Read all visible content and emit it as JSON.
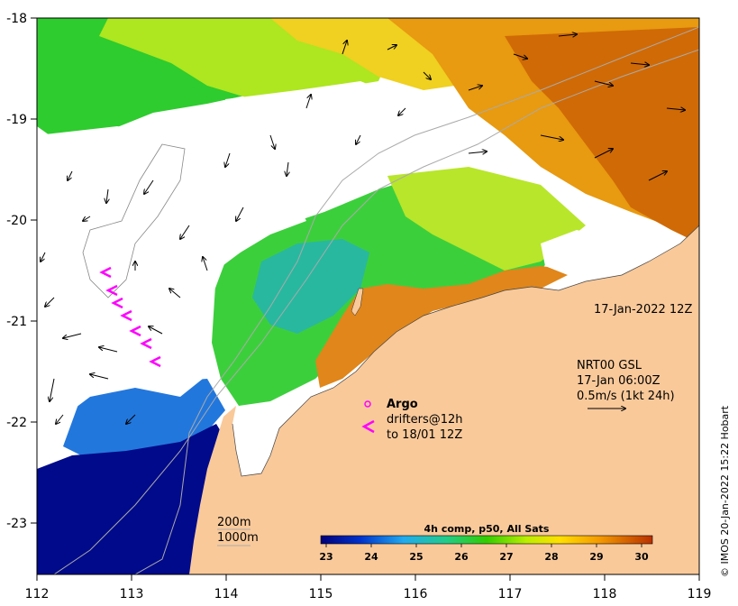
{
  "map": {
    "lon_ticks": [
      "112",
      "113",
      "114",
      "115",
      "116",
      "117",
      "118",
      "119"
    ],
    "lat_ticks": [
      "-18",
      "-19",
      "-20",
      "-21",
      "-22",
      "-23"
    ],
    "timestamp": "17-Jan-2022 12Z",
    "current_product": {
      "line1": "NRT00 GSL",
      "line2": "17-Jan 06:00Z",
      "line3": "0.5m/s (1kt 24h)"
    },
    "legend": {
      "argo_label": "Argo",
      "drifters_line1": "drifters@12h",
      "drifters_line2": "to 18/01 12Z",
      "argo_color": "#ff00ff"
    },
    "isobaths": {
      "shallow": "200m",
      "deep": "1000m"
    },
    "colorbar": {
      "title": "4h comp, p50, All Sats",
      "ticks": [
        "23",
        "24",
        "25",
        "26",
        "27",
        "28",
        "29",
        "30"
      ]
    },
    "credit": "© IMOS 20-Jan-2022 15:22 Hobart",
    "colors": {
      "land": "#f9c99a",
      "cold": "#00008b",
      "mid": "#22bb22",
      "warm": "#e07000"
    }
  }
}
